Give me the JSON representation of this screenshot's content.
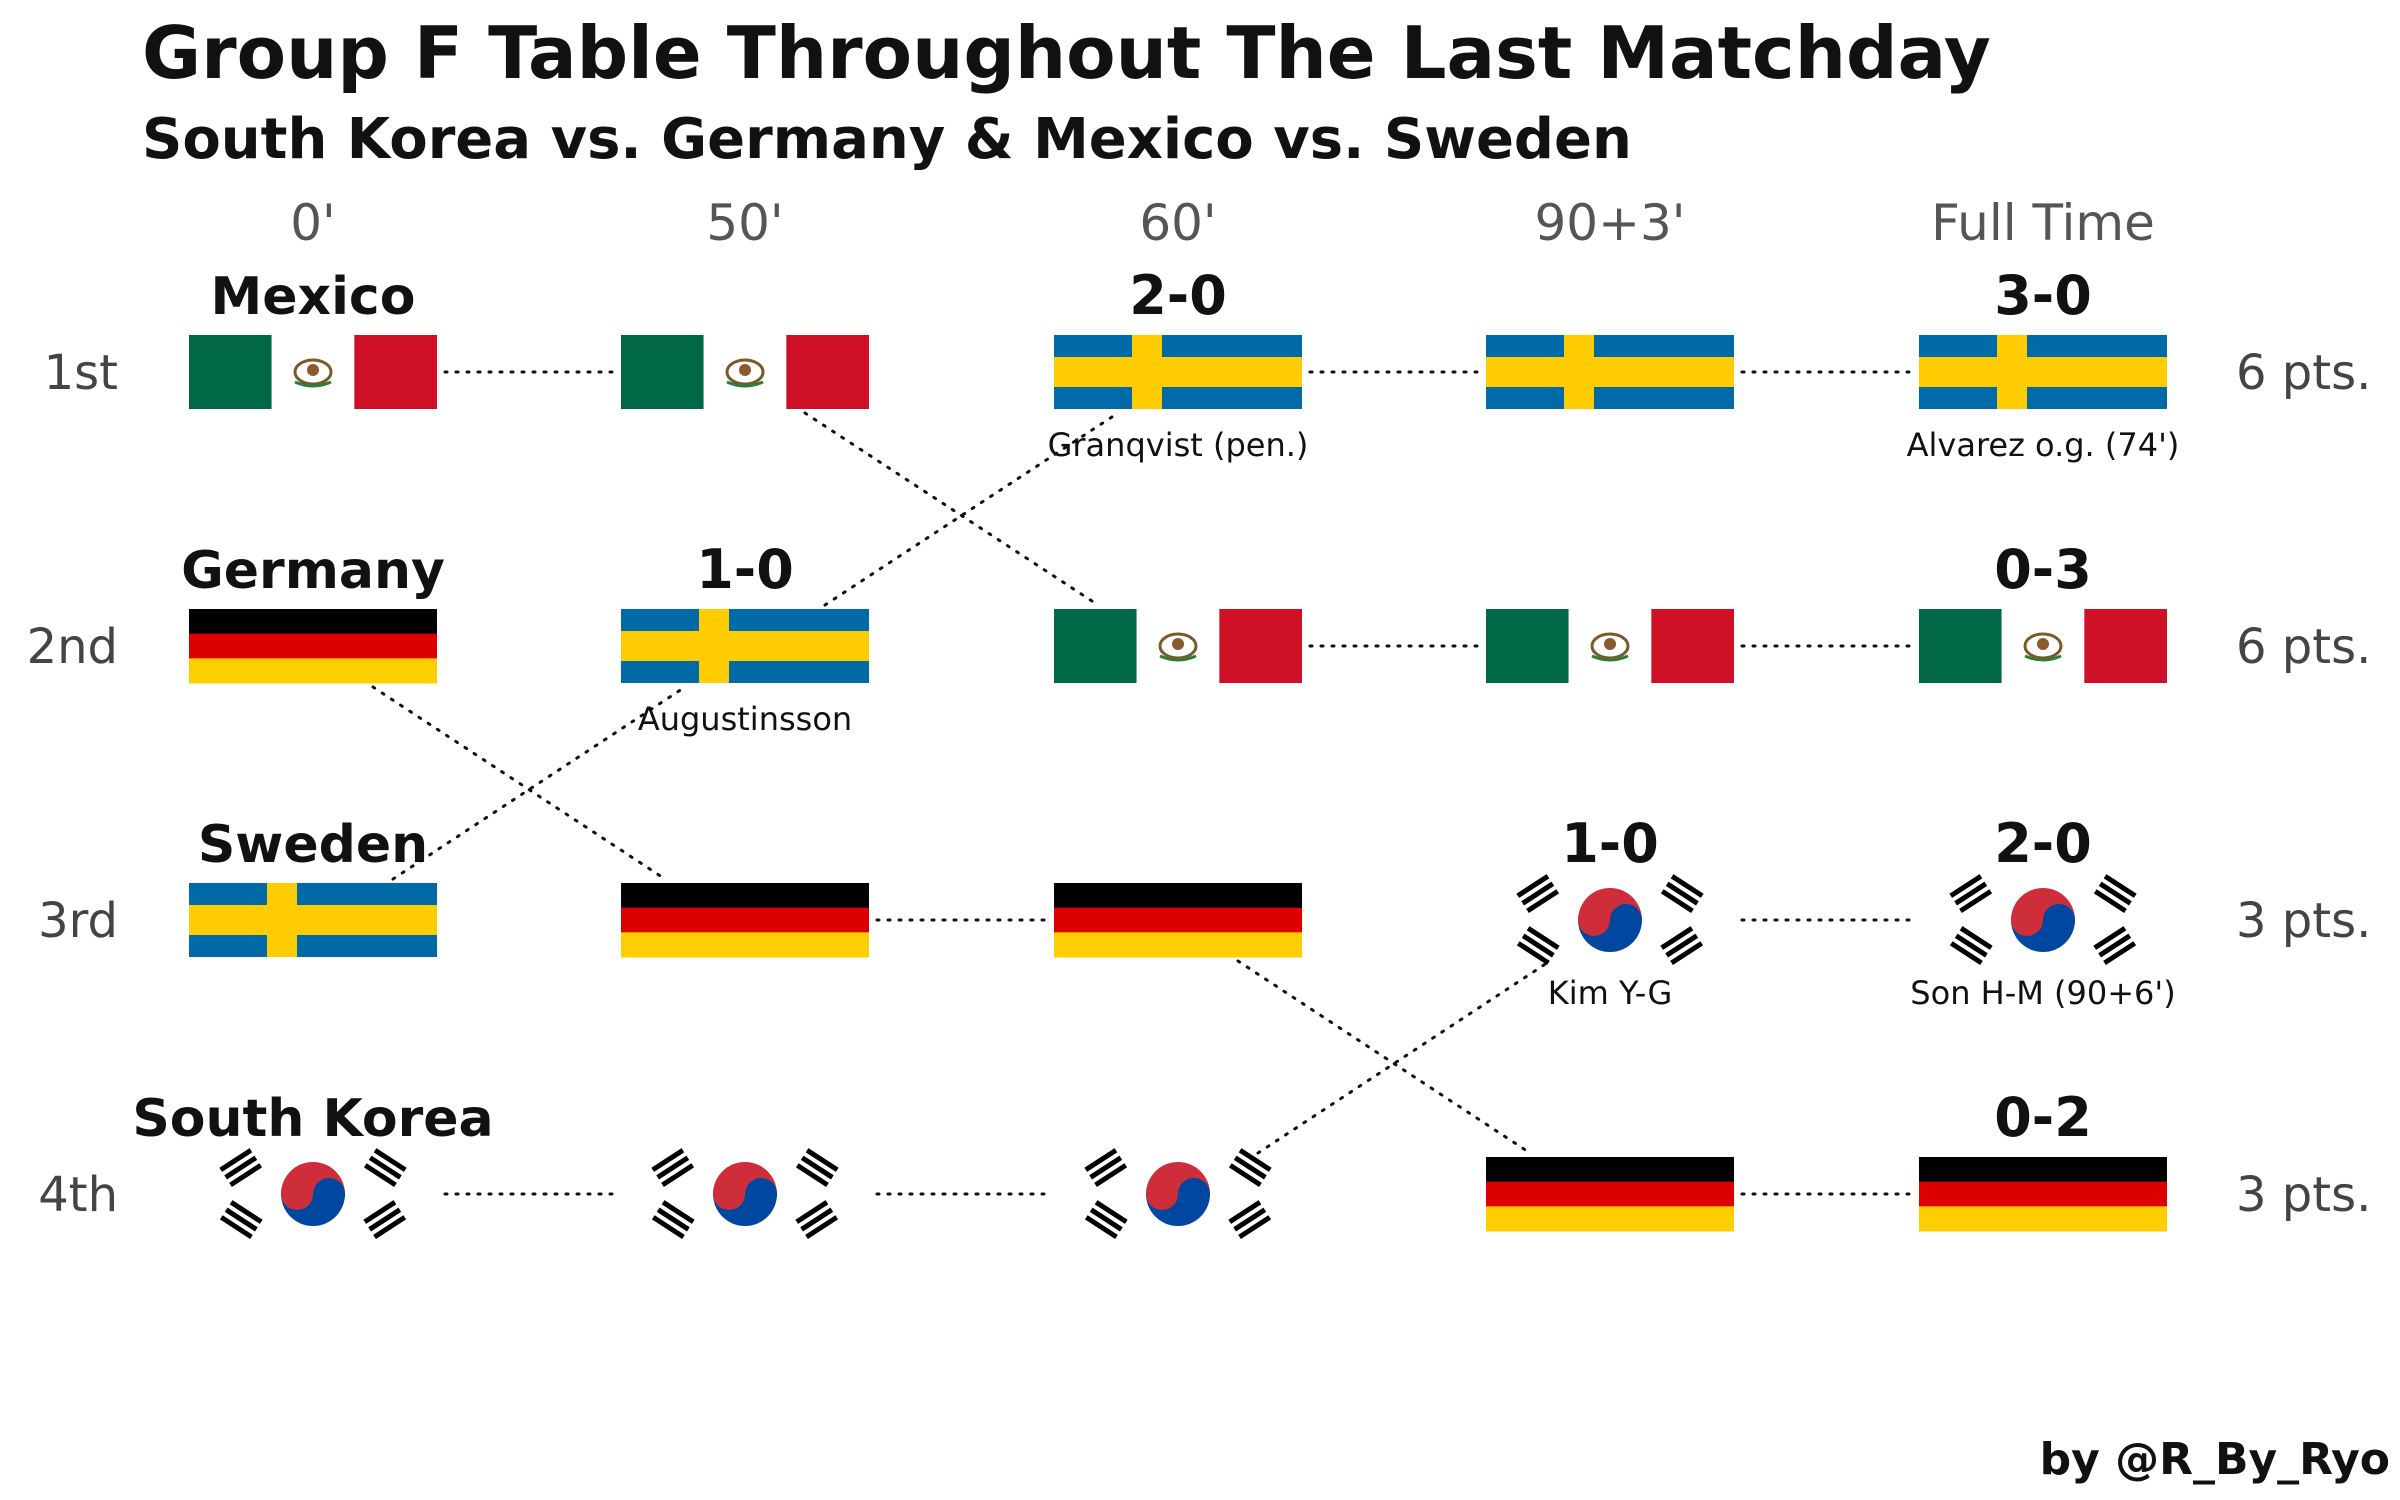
{
  "header": {
    "title": "Group F Table Throughout The Last Matchday",
    "subtitle": "South Korea vs. Germany & Mexico vs. Sweden"
  },
  "credit": "by @R_By_Ryo",
  "colors": {
    "mexico": [
      "#006847",
      "#ffffff",
      "#ce1126"
    ],
    "germany": [
      "#000000",
      "#dd0000",
      "#ffce00"
    ],
    "sweden": [
      "#006aa7",
      "#fecc00"
    ],
    "korea": [
      "#ffffff",
      "#cd2e3a",
      "#0047a0",
      "#000000"
    ],
    "connector": "#111111"
  },
  "chart_data": {
    "type": "table",
    "columns": [
      "0'",
      "50'",
      "60'",
      "90+3'",
      "Full Time"
    ],
    "ranks": [
      "1st",
      "2nd",
      "3rd",
      "4th"
    ],
    "points": [
      "6 pts.",
      "6 pts.",
      "3 pts.",
      "3 pts."
    ],
    "teams": {
      "mexico": "Mexico",
      "germany": "Germany",
      "sweden": "Sweden",
      "korea": "South Korea"
    },
    "standings": [
      [
        "mexico",
        "germany",
        "sweden",
        "korea"
      ],
      [
        "mexico",
        "sweden",
        "germany",
        "korea"
      ],
      [
        "sweden",
        "mexico",
        "germany",
        "korea"
      ],
      [
        "sweden",
        "mexico",
        "korea",
        "germany"
      ],
      [
        "sweden",
        "mexico",
        "korea",
        "germany"
      ]
    ],
    "annotations": [
      {
        "col": 1,
        "rank": 2,
        "score": "1-0",
        "scorer": "Augustinsson"
      },
      {
        "col": 2,
        "rank": 1,
        "score": "2-0",
        "scorer": "Granqvist (pen.)"
      },
      {
        "col": 3,
        "rank": 3,
        "score": "1-0",
        "scorer": "Kim Y-G"
      },
      {
        "col": 4,
        "rank": 1,
        "score": "3-0",
        "scorer": "Alvarez o.g. (74')"
      },
      {
        "col": 4,
        "rank": 2,
        "score": "0-3",
        "scorer": ""
      },
      {
        "col": 4,
        "rank": 3,
        "score": "2-0",
        "scorer": "Son H-M (90+6')"
      },
      {
        "col": 4,
        "rank": 4,
        "score": "0-2",
        "scorer": ""
      }
    ]
  }
}
